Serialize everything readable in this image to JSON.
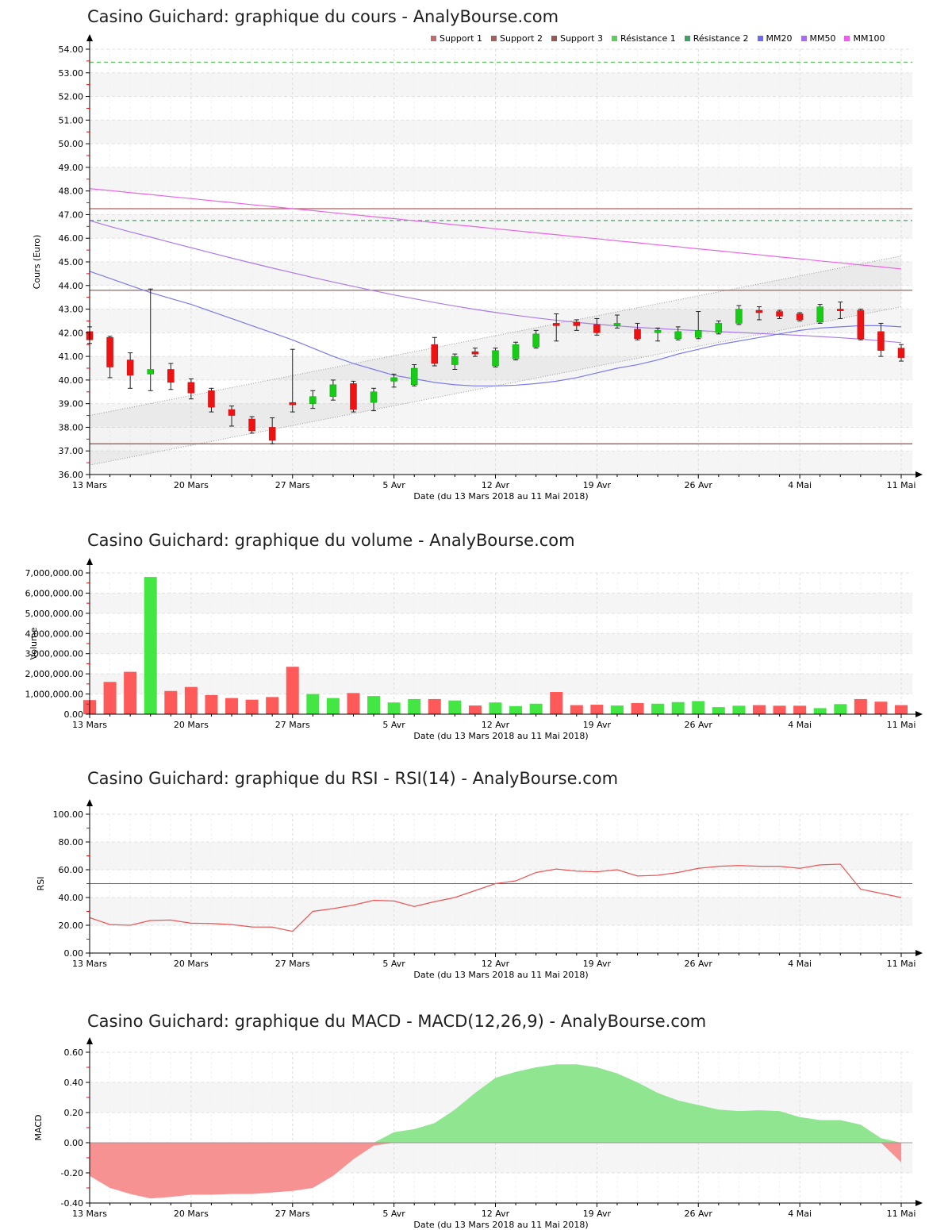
{
  "x_axis": {
    "tick_indices": [
      0,
      5,
      10,
      15,
      20,
      25,
      30,
      35,
      40
    ],
    "tick_labels": [
      "13 Mars",
      "20 Mars",
      "27 Mars",
      "5 Avr",
      "12 Avr",
      "19 Avr",
      "26 Avr",
      "4 Mai",
      "11 Mai"
    ],
    "label": "Date (du 13 Mars 2018 au 11 Mai 2018)"
  },
  "legend": {
    "items": [
      {
        "label": "Support 1",
        "color": "#c26a6a"
      },
      {
        "label": "Support 2",
        "color": "#a85d5d"
      },
      {
        "label": "Support 3",
        "color": "#985852"
      },
      {
        "label": "Résistance 1",
        "color": "#5bce5b"
      },
      {
        "label": "Résistance 2",
        "color": "#3fa463"
      },
      {
        "label": "MM20",
        "color": "#6b6bf2"
      },
      {
        "label": "MM50",
        "color": "#a76bf2"
      },
      {
        "label": "MM100",
        "color": "#f25bf2"
      }
    ]
  },
  "colors": {
    "candle_up": "#17cb17",
    "candle_down": "#ef1212",
    "wick": "#222222",
    "volume_up": "#43e643",
    "volume_down": "#ff5a5a",
    "rsi_line": "#ee5555",
    "rsi_midline": "#666666",
    "macd_positive": "#90e690",
    "macd_negative": "#f79292",
    "mm20": "#7b7bea",
    "mm50": "#ab7beb",
    "mm100": "#ec64e4"
  },
  "chart_data": [
    {
      "type": "candlestick",
      "title": "Casino Guichard: graphique du cours - AnalyBourse.com",
      "ylabel": "Cours (Euro)",
      "xlabel": "Date (du 13 Mars 2018 au 11 Mai 2018)",
      "ylim": [
        36,
        54
      ],
      "y_tick_values": [
        36,
        37,
        38,
        39,
        40,
        41,
        42,
        43,
        44,
        45,
        46,
        47,
        48,
        49,
        50,
        51,
        52,
        53,
        54
      ],
      "y_tick_labels": [
        "36.00",
        "37.00",
        "38.00",
        "39.00",
        "40.00",
        "41.00",
        "42.00",
        "43.00",
        "44.00",
        "45.00",
        "46.00",
        "47.00",
        "48.00",
        "49.00",
        "50.00",
        "51.00",
        "52.00",
        "53.00",
        "54.00"
      ],
      "ohlc": [
        [
          42.05,
          42.25,
          41.55,
          41.7
        ],
        [
          41.8,
          41.85,
          40.1,
          40.55
        ],
        [
          40.85,
          41.15,
          39.65,
          40.2
        ],
        [
          40.25,
          43.85,
          39.55,
          40.45
        ],
        [
          40.45,
          40.7,
          39.6,
          39.9
        ],
        [
          39.9,
          40.05,
          39.2,
          39.45
        ],
        [
          39.55,
          39.65,
          38.65,
          38.85
        ],
        [
          38.75,
          38.9,
          38.05,
          38.5
        ],
        [
          38.35,
          38.45,
          37.75,
          37.85
        ],
        [
          38.0,
          38.4,
          37.3,
          37.45
        ],
        [
          39.05,
          41.3,
          38.65,
          38.95
        ],
        [
          39.0,
          39.55,
          38.8,
          39.3
        ],
        [
          39.3,
          40.0,
          39.15,
          39.8
        ],
        [
          39.85,
          39.95,
          38.65,
          38.75
        ],
        [
          39.05,
          39.65,
          38.7,
          39.5
        ],
        [
          39.95,
          40.25,
          39.7,
          40.1
        ],
        [
          39.8,
          40.65,
          39.75,
          40.5
        ],
        [
          41.5,
          41.8,
          40.6,
          40.7
        ],
        [
          40.65,
          41.1,
          40.45,
          41.0
        ],
        [
          41.2,
          41.35,
          41.0,
          41.1
        ],
        [
          40.6,
          41.35,
          40.55,
          41.25
        ],
        [
          40.9,
          41.6,
          40.85,
          41.5
        ],
        [
          41.4,
          42.1,
          41.35,
          41.95
        ],
        [
          42.4,
          42.8,
          41.65,
          42.3
        ],
        [
          42.45,
          42.55,
          42.1,
          42.3
        ],
        [
          42.35,
          42.6,
          41.9,
          42.0
        ],
        [
          42.3,
          42.75,
          42.2,
          42.4
        ],
        [
          42.15,
          42.4,
          41.7,
          41.75
        ],
        [
          42.0,
          42.2,
          41.65,
          42.1
        ],
        [
          41.75,
          42.25,
          41.7,
          42.05
        ],
        [
          41.8,
          42.9,
          41.75,
          42.1
        ],
        [
          42.0,
          42.5,
          41.95,
          42.4
        ],
        [
          42.4,
          43.15,
          42.35,
          43.0
        ],
        [
          42.95,
          43.1,
          42.55,
          42.85
        ],
        [
          42.9,
          42.95,
          42.6,
          42.7
        ],
        [
          42.8,
          42.85,
          42.5,
          42.55
        ],
        [
          42.45,
          43.2,
          42.4,
          43.1
        ],
        [
          43.0,
          43.3,
          42.6,
          42.93
        ],
        [
          42.95,
          43.0,
          41.7,
          41.75
        ],
        [
          42.05,
          42.4,
          41.0,
          41.25
        ],
        [
          41.35,
          41.5,
          40.8,
          40.95
        ]
      ],
      "overlays": {
        "mm20": [
          44.6,
          44.3,
          44.0,
          43.7,
          43.45,
          43.2,
          42.9,
          42.6,
          42.3,
          42.0,
          41.7,
          41.35,
          41.0,
          40.7,
          40.45,
          40.2,
          40.05,
          39.9,
          39.8,
          39.75,
          39.75,
          39.78,
          39.85,
          39.95,
          40.1,
          40.3,
          40.5,
          40.65,
          40.85,
          41.1,
          41.3,
          41.5,
          41.65,
          41.8,
          41.95,
          42.1,
          42.2,
          42.25,
          42.3,
          42.3,
          42.25
        ],
        "mm50": [
          46.75,
          46.5,
          46.27,
          46.05,
          45.82,
          45.6,
          45.38,
          45.16,
          44.95,
          44.74,
          44.54,
          44.34,
          44.15,
          43.96,
          43.78,
          43.6,
          43.44,
          43.28,
          43.13,
          42.99,
          42.86,
          42.74,
          42.63,
          42.53,
          42.44,
          42.36,
          42.29,
          42.23,
          42.18,
          42.13,
          42.09,
          42.05,
          42.01,
          41.97,
          41.93,
          41.89,
          41.84,
          41.79,
          41.73,
          41.66,
          41.58
        ],
        "mm100": [
          48.1,
          48.02,
          47.93,
          47.85,
          47.76,
          47.68,
          47.59,
          47.51,
          47.42,
          47.34,
          47.25,
          47.17,
          47.08,
          47.0,
          46.91,
          46.83,
          46.74,
          46.66,
          46.57,
          46.49,
          46.4,
          46.32,
          46.23,
          46.15,
          46.06,
          45.98,
          45.89,
          45.81,
          45.72,
          45.64,
          45.55,
          45.47,
          45.38,
          45.3,
          45.21,
          45.13,
          45.04,
          44.96,
          44.87,
          44.79,
          44.7
        ],
        "support_levels": [
          {
            "name": "Support 1",
            "value": 47.25,
            "color": "#b05c5c"
          },
          {
            "name": "Support 2",
            "value": 43.8,
            "color": "#a06058"
          },
          {
            "name": "Support 3",
            "value": 37.3,
            "color": "#a05a52"
          }
        ],
        "resistance_levels": [
          {
            "name": "Résistance 1",
            "value": 53.45,
            "color": "#5bce5b"
          },
          {
            "name": "Résistance 2",
            "value": 46.75,
            "color": "#3fa463"
          }
        ],
        "channel": {
          "upper": [
            38.5,
            45.25
          ],
          "lower": [
            36.4,
            43.1
          ]
        }
      }
    },
    {
      "type": "bar",
      "title": "Casino Guichard: graphique du volume - AnalyBourse.com",
      "ylabel": "Volume",
      "xlabel": "Date (du 13 Mars 2018 au 11 Mai 2018)",
      "ylim": [
        0,
        7000000
      ],
      "y_tick_values": [
        0,
        1000000,
        2000000,
        3000000,
        4000000,
        5000000,
        6000000,
        7000000
      ],
      "y_tick_labels": [
        "0.00",
        "1,000,000.00",
        "2,000,000.00",
        "3,000,000.00",
        "4,000,000.00",
        "5,000,000.00",
        "6,000,000.00",
        "7,000,000.00"
      ],
      "values": [
        700000,
        1600000,
        2100000,
        6800000,
        1150000,
        1350000,
        950000,
        800000,
        720000,
        850000,
        2350000,
        1000000,
        800000,
        1050000,
        900000,
        580000,
        750000,
        750000,
        680000,
        430000,
        580000,
        400000,
        520000,
        1100000,
        450000,
        470000,
        430000,
        550000,
        520000,
        600000,
        650000,
        350000,
        420000,
        450000,
        420000,
        420000,
        300000,
        500000,
        750000,
        620000,
        450000
      ],
      "directions": [
        "down",
        "down",
        "down",
        "up",
        "down",
        "down",
        "down",
        "down",
        "down",
        "down",
        "down",
        "up",
        "up",
        "down",
        "up",
        "up",
        "up",
        "down",
        "up",
        "down",
        "up",
        "up",
        "up",
        "down",
        "down",
        "down",
        "up",
        "down",
        "up",
        "up",
        "up",
        "up",
        "up",
        "down",
        "down",
        "down",
        "up",
        "up",
        "down",
        "down",
        "down"
      ]
    },
    {
      "type": "line",
      "title": "Casino Guichard: graphique du RSI - RSI(14) - AnalyBourse.com",
      "ylabel": "RSI",
      "xlabel": "Date (du 13 Mars 2018 au 11 Mai 2018)",
      "ylim": [
        0,
        100
      ],
      "y_tick_values": [
        0,
        20,
        40,
        60,
        80,
        100
      ],
      "y_tick_labels": [
        "0.00",
        "20.00",
        "40.00",
        "60.00",
        "80.00",
        "100.00"
      ],
      "midline": 50,
      "values": [
        25.5,
        20.5,
        20.0,
        23.5,
        23.8,
        21.5,
        21.3,
        20.5,
        18.8,
        18.7,
        15.6,
        30.0,
        32.0,
        34.5,
        38.0,
        37.5,
        33.5,
        37.0,
        40.0,
        45.0,
        50.0,
        52.0,
        58.0,
        60.5,
        59.0,
        58.5,
        60.0,
        55.5,
        56.0,
        58.0,
        61.0,
        62.5,
        63.0,
        62.5,
        62.5,
        61.0,
        63.5,
        64.0,
        46.0,
        43.0,
        40.0
      ]
    },
    {
      "type": "area",
      "title": "Casino Guichard: graphique du MACD - MACD(12,26,9) - AnalyBourse.com",
      "ylabel": "MACD",
      "xlabel": "Date (du 13 Mars 2018 au 11 Mai 2018)",
      "ylim": [
        -0.4,
        0.6
      ],
      "y_tick_values": [
        -0.4,
        -0.2,
        0,
        0.2,
        0.4,
        0.6
      ],
      "y_tick_labels": [
        "-0.40",
        "-0.20",
        "0.00",
        "0.20",
        "0.40",
        "0.60"
      ],
      "baseline": 0,
      "values": [
        -0.22,
        -0.3,
        -0.34,
        -0.37,
        -0.36,
        -0.345,
        -0.345,
        -0.34,
        -0.34,
        -0.33,
        -0.32,
        -0.3,
        -0.22,
        -0.11,
        -0.02,
        0.07,
        0.09,
        0.13,
        0.22,
        0.33,
        0.43,
        0.47,
        0.5,
        0.52,
        0.52,
        0.5,
        0.46,
        0.4,
        0.33,
        0.28,
        0.25,
        0.22,
        0.21,
        0.215,
        0.21,
        0.17,
        0.15,
        0.15,
        0.12,
        0.03,
        -0.13
      ]
    }
  ]
}
